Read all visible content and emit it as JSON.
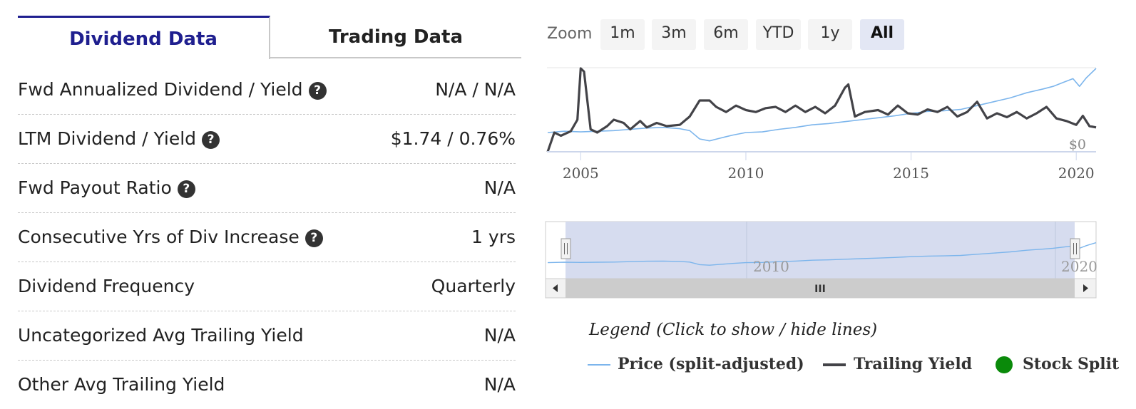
{
  "tabs": [
    {
      "label": "Dividend Data"
    },
    {
      "label": "Trading Data"
    }
  ],
  "rows": [
    {
      "label": "Fwd Annualized Dividend / Yield",
      "value": "N/A / N/A",
      "help": true
    },
    {
      "label": "LTM Dividend / Yield",
      "value": "$1.74 / 0.76%",
      "help": true
    },
    {
      "label": "Fwd Payout Ratio",
      "value": "N/A",
      "help": true
    },
    {
      "label": "Consecutive Yrs of Div Increase",
      "value": "1 yrs",
      "help": true
    },
    {
      "label": "Dividend Frequency",
      "value": "Quarterly",
      "help": false
    },
    {
      "label": "Uncategorized Avg Trailing Yield",
      "value": "N/A",
      "help": false
    },
    {
      "label": "Other Avg Trailing Yield",
      "value": "N/A",
      "help": false
    }
  ],
  "help_glyph": "?",
  "zoom": {
    "label": "Zoom",
    "buttons": [
      "1m",
      "3m",
      "6m",
      "YTD",
      "1y",
      "All"
    ],
    "active": "All"
  },
  "navigator": {
    "tick_labels": [
      "2010",
      "2020"
    ],
    "scroll_glyph": "III",
    "handle_glyph": "||"
  },
  "legend": {
    "title": "Legend (Click to show / hide lines)",
    "items": [
      {
        "label": "Price (split-adjusted)",
        "color": "#7cb5ec"
      },
      {
        "label": "Trailing Yield",
        "color": "#434348"
      },
      {
        "label": "Stock Split",
        "color": "#0a8a0a"
      }
    ]
  },
  "chart_data": {
    "type": "line",
    "x_ticks": [
      "2005",
      "2010",
      "2015",
      "2020"
    ],
    "y_tick_labels": [
      "$0"
    ],
    "xlim": [
      2004.0,
      2020.6
    ],
    "series": [
      {
        "name": "Price (split-adjusted)",
        "color": "#7cb5ec",
        "x": [
          2004.0,
          2004.5,
          2005.0,
          2005.5,
          2006.0,
          2006.5,
          2007.0,
          2007.5,
          2008.0,
          2008.3,
          2008.6,
          2008.9,
          2009.2,
          2009.6,
          2010.0,
          2010.5,
          2011.0,
          2011.5,
          2012.0,
          2012.5,
          2013.0,
          2013.5,
          2014.0,
          2014.5,
          2015.0,
          2015.5,
          2016.0,
          2016.5,
          2017.0,
          2017.5,
          2018.0,
          2018.5,
          2019.0,
          2019.3,
          2019.6,
          2019.9,
          2020.1,
          2020.3,
          2020.6
        ],
        "values": [
          0.3,
          0.32,
          0.31,
          0.32,
          0.33,
          0.35,
          0.37,
          0.38,
          0.36,
          0.33,
          0.2,
          0.17,
          0.21,
          0.26,
          0.3,
          0.31,
          0.35,
          0.38,
          0.42,
          0.44,
          0.47,
          0.5,
          0.53,
          0.56,
          0.6,
          0.63,
          0.64,
          0.66,
          0.72,
          0.78,
          0.84,
          0.92,
          0.98,
          1.02,
          1.08,
          1.14,
          1.02,
          1.15,
          1.3
        ]
      },
      {
        "name": "Trailing Yield",
        "color": "#434348",
        "x": [
          2004.0,
          2004.2,
          2004.4,
          2004.7,
          2004.9,
          2005.0,
          2005.1,
          2005.3,
          2005.5,
          2005.8,
          2006.0,
          2006.3,
          2006.5,
          2006.8,
          2007.0,
          2007.3,
          2007.6,
          2008.0,
          2008.3,
          2008.6,
          2008.9,
          2009.1,
          2009.4,
          2009.7,
          2010.0,
          2010.3,
          2010.6,
          2010.9,
          2011.2,
          2011.5,
          2011.8,
          2012.1,
          2012.4,
          2012.7,
          2013.0,
          2013.1,
          2013.3,
          2013.6,
          2014.0,
          2014.3,
          2014.6,
          2014.9,
          2015.2,
          2015.5,
          2015.8,
          2016.1,
          2016.4,
          2016.7,
          2017.0,
          2017.3,
          2017.6,
          2017.9,
          2018.2,
          2018.5,
          2018.8,
          2019.1,
          2019.4,
          2019.7,
          2020.0,
          2020.2,
          2020.4,
          2020.6
        ],
        "values": [
          0.0,
          0.3,
          0.25,
          0.32,
          0.5,
          1.3,
          1.25,
          0.35,
          0.3,
          0.4,
          0.5,
          0.45,
          0.35,
          0.48,
          0.38,
          0.45,
          0.4,
          0.42,
          0.55,
          0.8,
          0.8,
          0.7,
          0.62,
          0.72,
          0.65,
          0.62,
          0.68,
          0.7,
          0.62,
          0.72,
          0.62,
          0.7,
          0.6,
          0.72,
          1.0,
          1.05,
          0.55,
          0.62,
          0.65,
          0.58,
          0.72,
          0.6,
          0.58,
          0.66,
          0.62,
          0.7,
          0.55,
          0.62,
          0.78,
          0.52,
          0.6,
          0.54,
          0.62,
          0.52,
          0.6,
          0.7,
          0.52,
          0.48,
          0.42,
          0.56,
          0.4,
          0.38
        ]
      }
    ]
  }
}
